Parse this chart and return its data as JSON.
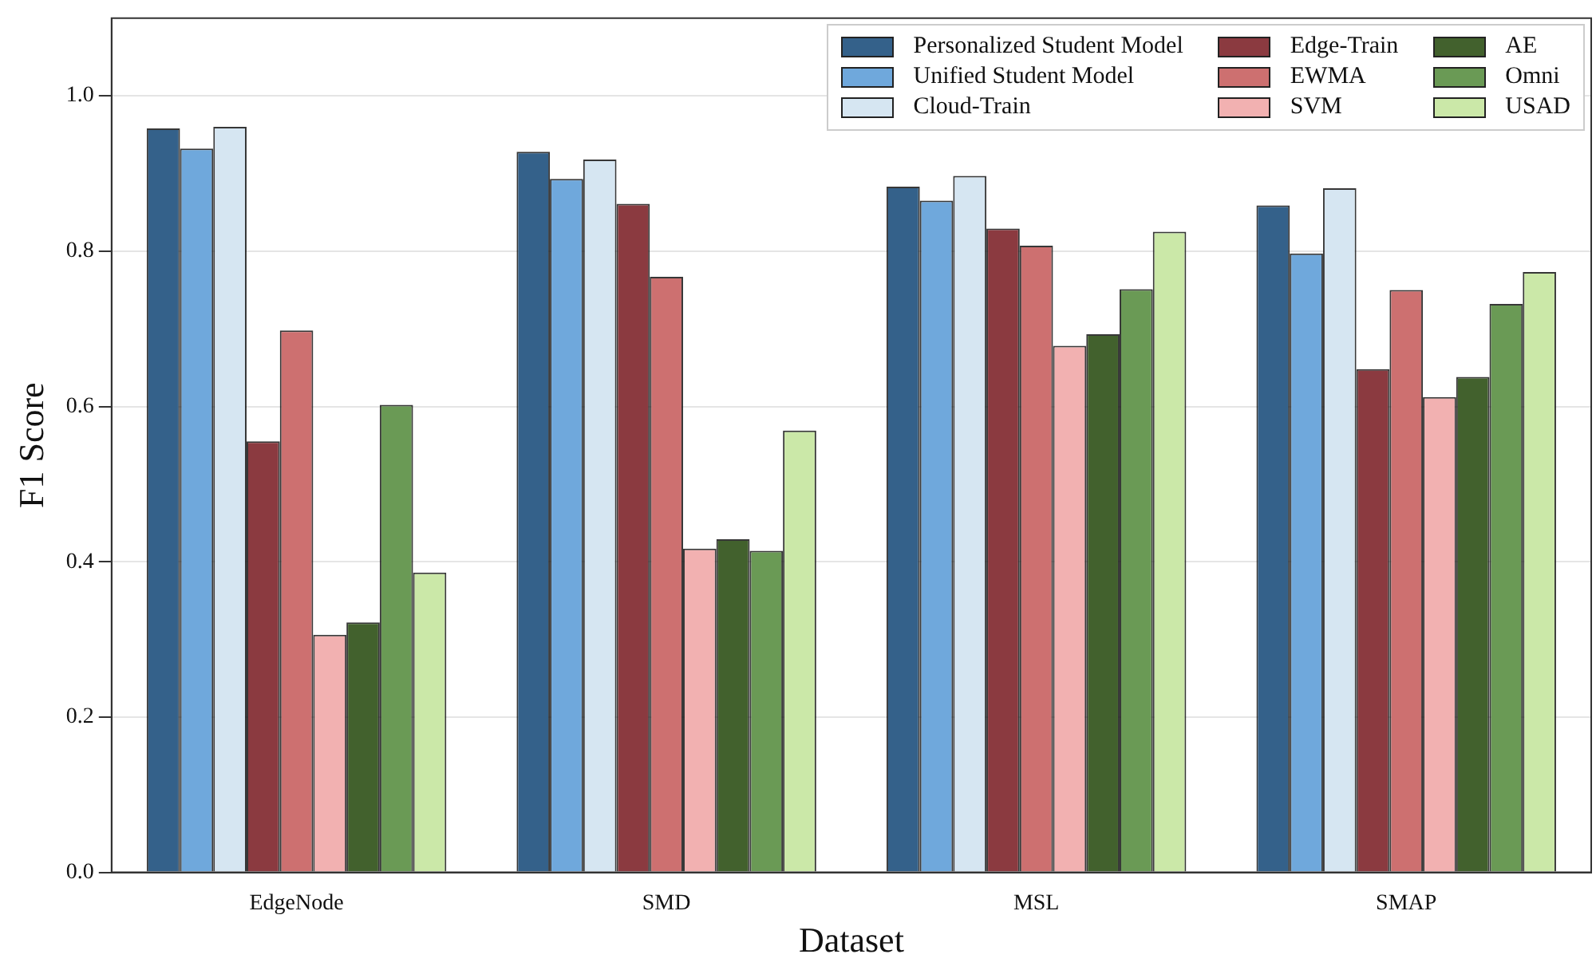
{
  "chart_data": {
    "type": "bar",
    "xlabel": "Dataset",
    "ylabel": "F1 Score",
    "categories": [
      "EdgeNode",
      "SMD",
      "MSL",
      "SMAP"
    ],
    "series": [
      {
        "name": "Personalized Student Model",
        "color": "#34618a",
        "values": [
          0.958,
          0.928,
          0.883,
          0.859
        ]
      },
      {
        "name": "Unified Student Model",
        "color": "#6fa8dc",
        "values": [
          0.932,
          0.893,
          0.865,
          0.797
        ]
      },
      {
        "name": "Cloud-Train",
        "color": "#d6e6f2",
        "values": [
          0.96,
          0.918,
          0.897,
          0.881
        ]
      },
      {
        "name": "Edge-Train",
        "color": "#8b3a40",
        "values": [
          0.555,
          0.861,
          0.829,
          0.648
        ]
      },
      {
        "name": "EWMA",
        "color": "#cd7070",
        "values": [
          0.698,
          0.767,
          0.807,
          0.75
        ]
      },
      {
        "name": "SVM",
        "color": "#f2b1b1",
        "values": [
          0.306,
          0.417,
          0.678,
          0.612
        ]
      },
      {
        "name": "AE",
        "color": "#42612d",
        "values": [
          0.322,
          0.429,
          0.693,
          0.638
        ]
      },
      {
        "name": "Omni",
        "color": "#6a9a55",
        "values": [
          0.602,
          0.414,
          0.751,
          0.732
        ]
      },
      {
        "name": "USAD",
        "color": "#cbe8a8",
        "values": [
          0.386,
          0.569,
          0.825,
          0.773
        ]
      }
    ],
    "ylim": [
      0,
      1.1
    ],
    "yticks": [
      {
        "value": 0,
        "label": "0.0"
      },
      0.2,
      0.4,
      0.6,
      0.8,
      {
        "value": 1,
        "label": "1.0"
      }
    ],
    "grid": "y",
    "legend": "top right"
  }
}
